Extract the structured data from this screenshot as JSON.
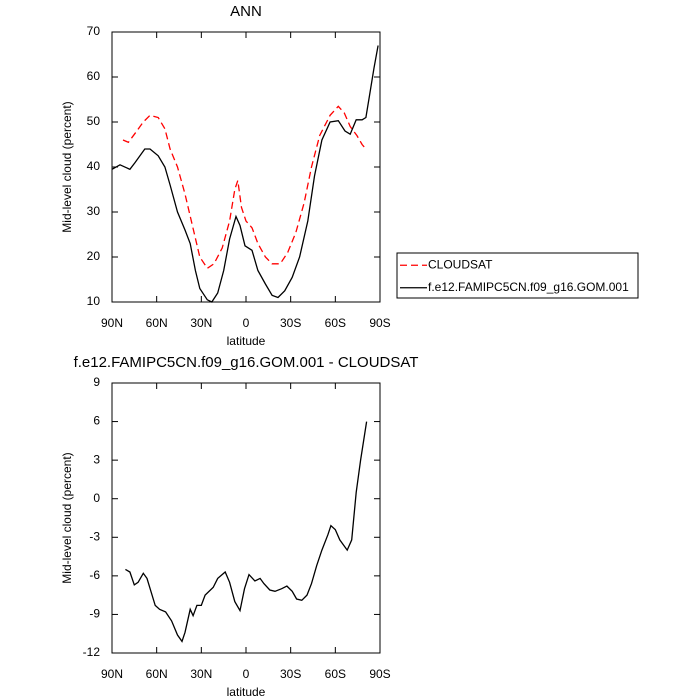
{
  "chart_data": [
    {
      "type": "line",
      "title": "ANN",
      "xlabel": "latitude",
      "ylabel": "Mid-level cloud (percent)",
      "xlim": [
        90,
        -90
      ],
      "xticks": [
        {
          "value": 90,
          "label": "90N"
        },
        {
          "value": 60,
          "label": "60N"
        },
        {
          "value": 30,
          "label": "30N"
        },
        0,
        {
          "value": -30,
          "label": "30S"
        },
        {
          "value": -60,
          "label": "60S"
        },
        {
          "value": -90,
          "label": "90S"
        }
      ],
      "ylim": [
        10,
        70
      ],
      "yticks": [
        10,
        20,
        30,
        40,
        50,
        60,
        70
      ],
      "legend": "right",
      "series": [
        {
          "name": "CLOUDSAT",
          "color": "#ff0000",
          "dashed": true,
          "x": [
            82.6,
            79,
            74.5,
            69,
            64.5,
            59,
            54.5,
            51,
            46,
            41,
            36,
            31,
            26,
            21.5,
            16,
            11,
            7.5,
            5.5,
            3,
            0,
            -4,
            -8,
            -13,
            -17.5,
            -23,
            -28,
            -33.5,
            -39,
            -44,
            -49.5,
            -56.5,
            -62,
            -66,
            -70,
            -74.5,
            -78,
            -80.5
          ],
          "values": [
            46,
            45.5,
            47.5,
            50,
            51.5,
            51,
            48.5,
            44,
            40,
            34,
            27,
            20,
            17.5,
            18.5,
            22,
            28,
            35,
            37,
            31,
            28,
            26.5,
            23,
            20,
            18.5,
            18.5,
            21,
            25.5,
            32,
            40,
            47,
            51.5,
            53.5,
            52,
            49,
            47,
            45,
            44
          ]
        },
        {
          "name": "f.e12.FAMIPC5CN.f09_g16.GOM.001",
          "color": "#000000",
          "dashed": false,
          "x": [
            90,
            84.6,
            78,
            74.5,
            68,
            64.5,
            59,
            54.5,
            51,
            46,
            41,
            37.5,
            34,
            31,
            26,
            23,
            19,
            15,
            11,
            6.7,
            4,
            0.7,
            -4,
            -8,
            -13,
            -17.5,
            -21.5,
            -26,
            -31,
            -36,
            -41.5,
            -46,
            -51,
            -56.5,
            -62,
            -66.5,
            -70,
            -74,
            -78,
            -80.5,
            -83,
            -86,
            -88.7
          ],
          "values": [
            39.5,
            40.5,
            39.5,
            41,
            44,
            44,
            42.5,
            40,
            36,
            30,
            26,
            23,
            17,
            13,
            10.5,
            10,
            12,
            17,
            24,
            29,
            27,
            22.5,
            21.5,
            17,
            14,
            11.5,
            11,
            12.5,
            15.5,
            20,
            28,
            38,
            46,
            50,
            50.3,
            48,
            47.3,
            50.5,
            50.5,
            51,
            56,
            62,
            67
          ]
        }
      ]
    },
    {
      "type": "line",
      "title": "f.e12.FAMIPC5CN.f09_g16.GOM.001 - CLOUDSAT",
      "xlabel": "latitude",
      "ylabel": "Mid-level cloud (percent)",
      "xlim": [
        90,
        -90
      ],
      "xticks": [
        {
          "value": 90,
          "label": "90N"
        },
        {
          "value": 60,
          "label": "60N"
        },
        {
          "value": 30,
          "label": "30N"
        },
        0,
        {
          "value": -30,
          "label": "30S"
        },
        {
          "value": -60,
          "label": "60S"
        },
        {
          "value": -90,
          "label": "90S"
        }
      ],
      "ylim": [
        -12,
        9
      ],
      "yticks": [
        -12,
        -9,
        -6,
        -3,
        0,
        3,
        6,
        9
      ],
      "series": [
        {
          "color": "#000000",
          "dashed": false,
          "x": [
            81,
            78,
            75,
            72.5,
            69,
            66.5,
            61,
            58,
            54,
            50,
            46,
            43,
            41,
            37.5,
            35.5,
            33,
            30,
            27.5,
            22,
            19,
            14,
            11,
            7.5,
            4,
            1,
            -2,
            -6,
            -9.5,
            -12,
            -16,
            -19.5,
            -24,
            -27.5,
            -31,
            -34,
            -37.5,
            -41,
            -44,
            -47.5,
            -51,
            -55,
            -57,
            -60,
            -63,
            -68,
            -71,
            -74,
            -77,
            -81
          ],
          "values": [
            -5.5,
            -5.7,
            -6.7,
            -6.5,
            -5.8,
            -6.2,
            -8.3,
            -8.6,
            -8.8,
            -9.5,
            -10.6,
            -11.1,
            -10.4,
            -8.6,
            -9.1,
            -8.3,
            -8.3,
            -7.5,
            -6.9,
            -6.2,
            -5.7,
            -6.5,
            -8,
            -8.7,
            -7,
            -5.9,
            -6.4,
            -6.2,
            -6.6,
            -7.1,
            -7.2,
            -7,
            -6.8,
            -7.2,
            -7.8,
            -7.9,
            -7.5,
            -6.6,
            -5.2,
            -4,
            -2.8,
            -2.1,
            -2.4,
            -3.2,
            -4,
            -3.2,
            0.5,
            3,
            6
          ]
        }
      ]
    }
  ]
}
